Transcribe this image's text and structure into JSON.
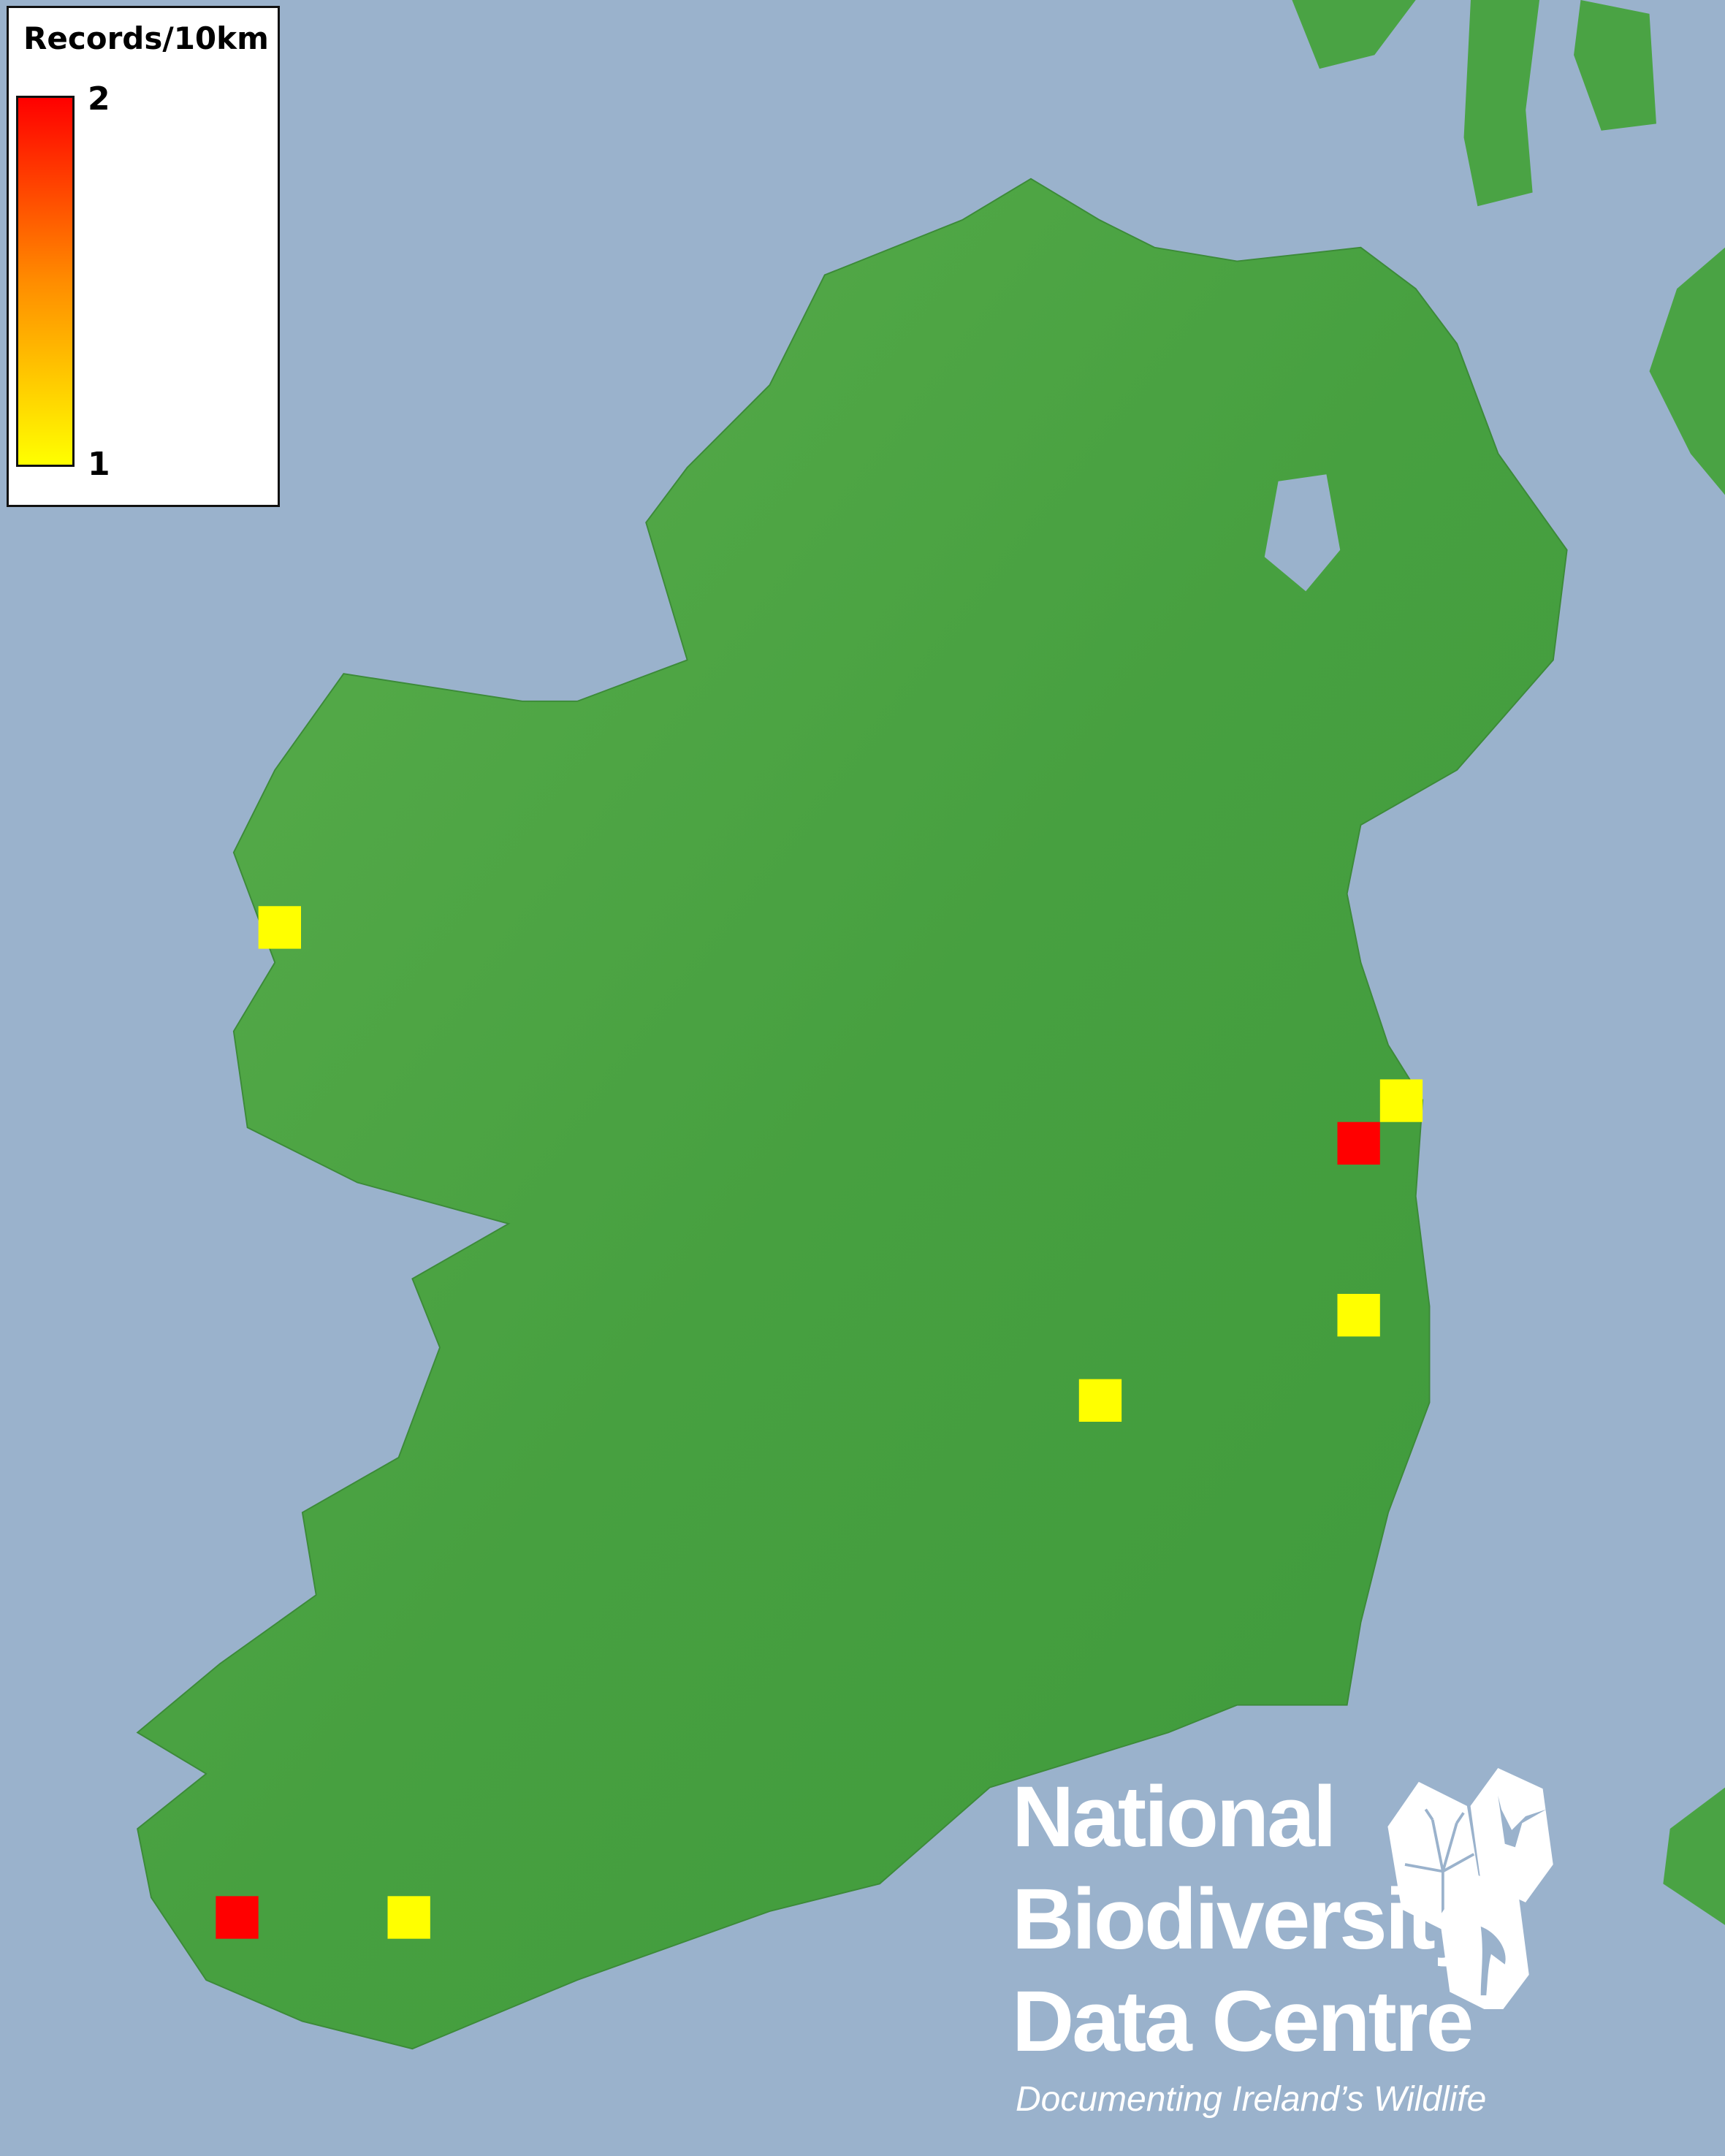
{
  "legend": {
    "title": "Records/10km",
    "max_label": "2",
    "min_label": "1",
    "color_max": "#ff0000",
    "color_min": "#ffff00"
  },
  "colors": {
    "sea": "#9ab2cc",
    "land": "#4aa344"
  },
  "records": [
    {
      "value": 1,
      "color": "#ffff00"
    },
    {
      "value": 1,
      "color": "#ffff00"
    },
    {
      "value": 2,
      "color": "#ff0000"
    },
    {
      "value": 1,
      "color": "#ffff00"
    },
    {
      "value": 1,
      "color": "#ffff00"
    },
    {
      "value": 2,
      "color": "#ff0000"
    },
    {
      "value": 1,
      "color": "#ffff00"
    }
  ],
  "logo": {
    "line1": "National",
    "line2": "Biodiversity",
    "line3": "Data Centre",
    "tagline": "Documenting Ireland’s Wildlife",
    "icons": [
      "tree-icon",
      "butterfly-icon",
      "seahorse-icon"
    ]
  }
}
